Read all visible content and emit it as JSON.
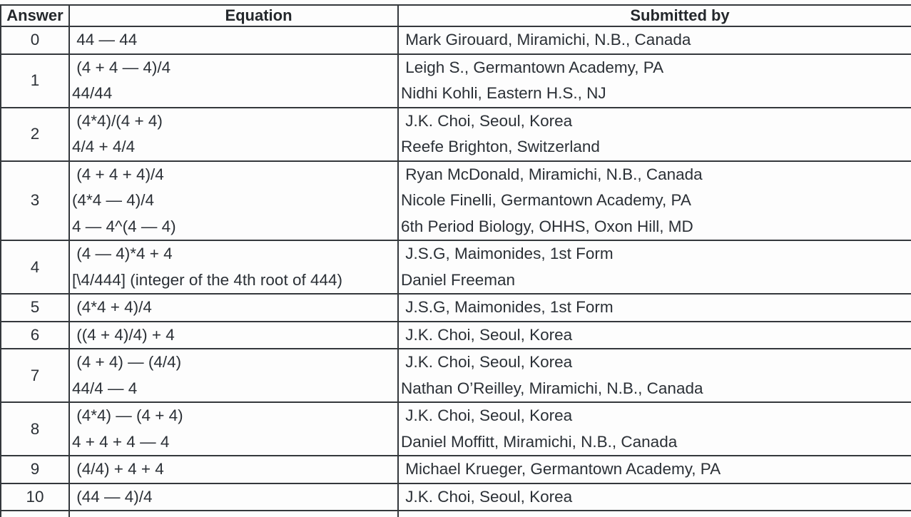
{
  "colors": {
    "border": "#34383c",
    "text": "#2b3036",
    "header_text": "#24282c",
    "background": "#fdfdfd"
  },
  "table": {
    "columns": [
      {
        "key": "answer",
        "label": "Answer"
      },
      {
        "key": "equation",
        "label": "Equation"
      },
      {
        "key": "submitted_by",
        "label": "Submitted by"
      }
    ],
    "rows": [
      {
        "answer": "0",
        "equations": [
          " 44 — 44"
        ],
        "submitters": [
          " Mark Girouard, Miramichi, N.B., Canada"
        ]
      },
      {
        "answer": "1",
        "equations": [
          " (4 + 4 — 4)/4",
          "44/44"
        ],
        "submitters": [
          " Leigh S., Germantown Academy, PA",
          "Nidhi Kohli, Eastern H.S., NJ"
        ]
      },
      {
        "answer": "2",
        "equations": [
          " (4*4)/(4 + 4)",
          "4/4 + 4/4"
        ],
        "submitters": [
          " J.K. Choi, Seoul, Korea",
          "Reefe Brighton, Switzerland"
        ]
      },
      {
        "answer": "3",
        "equations": [
          " (4 + 4 + 4)/4",
          "(4*4 — 4)/4",
          "4 — 4^(4 — 4)"
        ],
        "submitters": [
          " Ryan McDonald, Miramichi, N.B., Canada",
          "Nicole Finelli, Germantown Academy, PA",
          "6th Period Biology, OHHS, Oxon Hill, MD"
        ]
      },
      {
        "answer": "4",
        "equations": [
          " (4 — 4)*4 + 4",
          "[\\4/444] (integer of the 4th root of 444)"
        ],
        "submitters": [
          " J.S.G, Maimonides, 1st Form",
          "Daniel Freeman"
        ]
      },
      {
        "answer": "5",
        "equations": [
          " (4*4 + 4)/4"
        ],
        "submitters": [
          " J.S.G, Maimonides, 1st Form"
        ]
      },
      {
        "answer": "6",
        "equations": [
          " ((4 + 4)/4) + 4"
        ],
        "submitters": [
          " J.K. Choi, Seoul, Korea"
        ]
      },
      {
        "answer": "7",
        "equations": [
          " (4 + 4) — (4/4)",
          "44/4 — 4"
        ],
        "submitters": [
          " J.K. Choi, Seoul, Korea",
          "Nathan O’Reilley, Miramichi, N.B., Canada"
        ]
      },
      {
        "answer": "8",
        "equations": [
          " (4*4) — (4 + 4)",
          "4 + 4 + 4 — 4"
        ],
        "submitters": [
          " J.K. Choi, Seoul, Korea",
          "Daniel Moffitt, Miramichi, N.B., Canada"
        ]
      },
      {
        "answer": "9",
        "equations": [
          " (4/4) + 4 + 4"
        ],
        "submitters": [
          " Michael Krueger, Germantown Academy, PA"
        ]
      },
      {
        "answer": "10",
        "equations": [
          " (44 — 4)/4"
        ],
        "submitters": [
          " J.K. Choi, Seoul, Korea"
        ]
      }
    ]
  }
}
